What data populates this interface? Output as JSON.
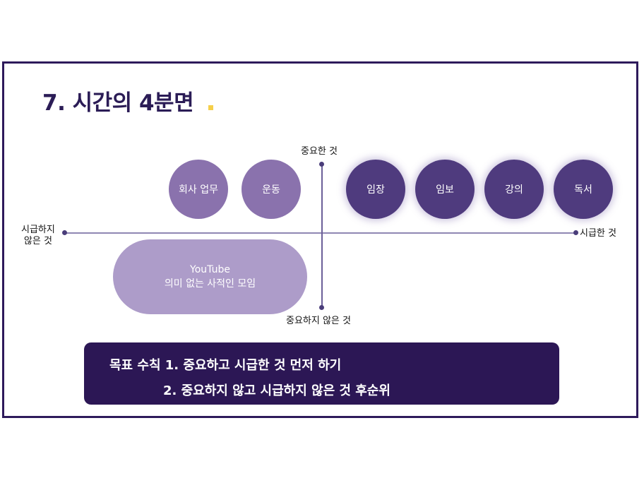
{
  "title": "7. 시간의 4분면",
  "axes": {
    "top": "중요한 것",
    "bottom": "중요하지 않은 것",
    "left_line1": "시급하지",
    "left_line2": "않은 것",
    "right": "시급한 것"
  },
  "quadrants": {
    "important_not_urgent": [
      "회사 업무",
      "운동"
    ],
    "important_urgent": [
      "임장",
      "임보",
      "강의",
      "독서"
    ],
    "not_important_not_urgent": {
      "line1": "YouTube",
      "line2": "의미 없는 사적인 모임"
    }
  },
  "goal": {
    "line1": "목표 수칙 1. 중요하고 시급한 것 먼저 하기",
    "line2": "2. 중요하지 않고 시급하지 않은 것 후순위"
  },
  "colors": {
    "frame": "#2e1a5b",
    "title": "#2b1c56",
    "accent_dot": "#f5cf4a",
    "bubble_light": "#8a72ad",
    "bubble_dark": "#4f3b7e",
    "pill": "#ad9cc9",
    "goal_box": "#2c1755"
  }
}
